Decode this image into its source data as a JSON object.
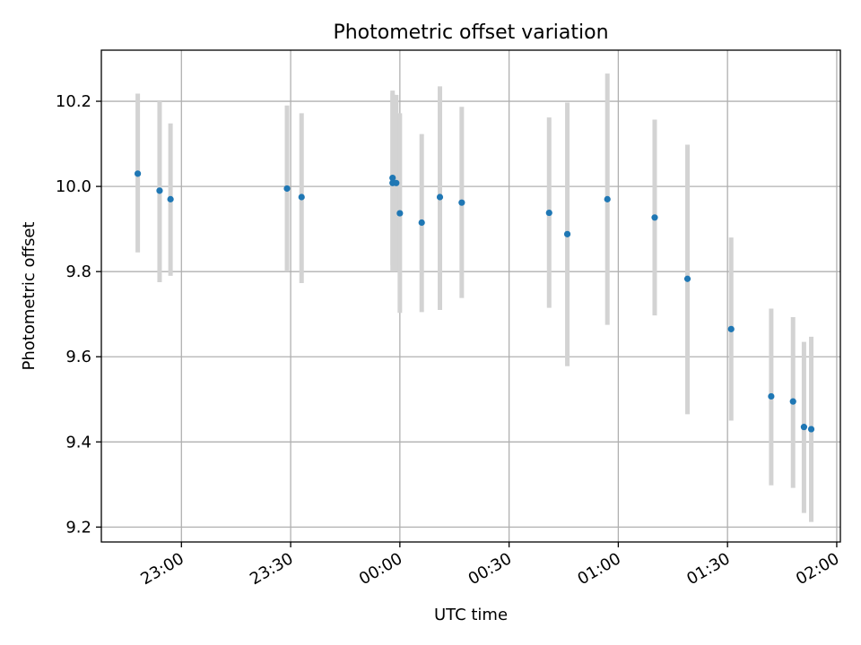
{
  "chart_data": {
    "type": "scatter",
    "title": "Photometric offset variation",
    "xlabel": "UTC time",
    "ylabel": "Photometric offset",
    "grid": true,
    "xlim_minutes": [
      -82,
      121
    ],
    "ylim": [
      9.165,
      10.32
    ],
    "x_ticks": [
      "23:00",
      "23:30",
      "00:00",
      "00:30",
      "01:00",
      "01:30",
      "02:00"
    ],
    "y_ticks": [
      "9.2",
      "9.4",
      "9.6",
      "9.8",
      "10.0",
      "10.2"
    ],
    "colors": {
      "points": "#1f77b4",
      "errorbars": "#d3d3d3",
      "grid": "#b0b0b0"
    },
    "series": [
      {
        "x": [
          "22:48",
          "22:54",
          "22:57",
          "23:29",
          "23:33",
          "23:58",
          "23:58",
          "23:59",
          "00:00",
          "00:06",
          "00:11",
          "00:17",
          "00:41",
          "00:46",
          "00:57",
          "01:10",
          "01:19",
          "01:31",
          "01:42",
          "01:48",
          "01:51",
          "01:53"
        ],
        "y": [
          10.03,
          9.99,
          9.97,
          9.995,
          9.975,
          10.008,
          10.02,
          10.008,
          9.937,
          9.915,
          9.975,
          9.962,
          9.938,
          9.888,
          9.97,
          9.927,
          9.783,
          9.665,
          9.507,
          9.495,
          9.435,
          9.43
        ],
        "y_low": [
          9.845,
          9.775,
          9.79,
          9.8,
          9.773,
          9.8,
          9.815,
          9.8,
          9.703,
          9.705,
          9.71,
          9.738,
          9.715,
          9.578,
          9.675,
          9.697,
          9.465,
          9.45,
          9.298,
          9.292,
          9.233,
          9.212
        ],
        "y_high": [
          10.218,
          10.2,
          10.148,
          10.19,
          10.172,
          10.218,
          10.225,
          10.215,
          10.172,
          10.123,
          10.235,
          10.187,
          10.162,
          10.197,
          10.265,
          10.157,
          10.098,
          9.88,
          9.713,
          9.693,
          9.635,
          9.647
        ]
      }
    ]
  }
}
